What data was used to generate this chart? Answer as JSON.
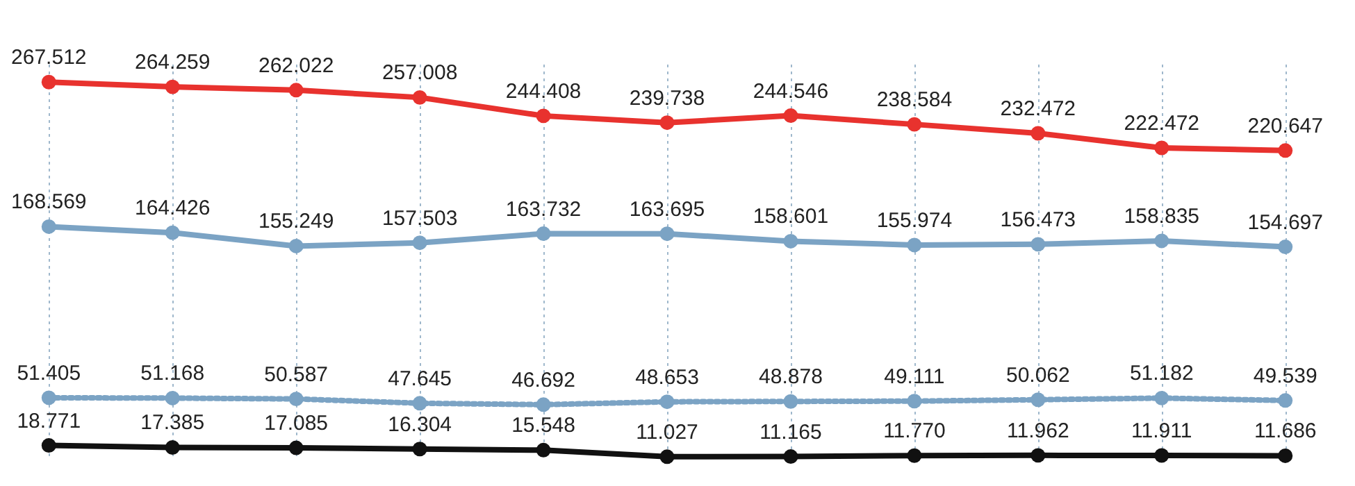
{
  "chart_data": {
    "type": "line",
    "categories": [
      null,
      null,
      null,
      null,
      null,
      null,
      null,
      null,
      null,
      null,
      null
    ],
    "series": [
      {
        "color": "#e8322e",
        "values": [
          267.512,
          264.259,
          262.022,
          257.008,
          244.408,
          239.738,
          244.546,
          238.584,
          232.472,
          222.472,
          220.647
        ],
        "value_labels": [
          "267.512",
          "264.259",
          "262.022",
          "257.008",
          "244.408",
          "239.738",
          "244.546",
          "238.584",
          "232.472",
          "222.472",
          "220.647"
        ]
      },
      {
        "color": "#7ba3c4",
        "values": [
          168.569,
          164.426,
          155.249,
          157.503,
          163.732,
          163.695,
          158.601,
          155.974,
          156.473,
          158.835,
          154.697
        ],
        "value_labels": [
          "168.569",
          "164.426",
          "155.249",
          "157.503",
          "163.732",
          "163.695",
          "158.601",
          "155.974",
          "156.473",
          "158.835",
          "154.697"
        ]
      },
      {
        "color": "#7ba3c4",
        "line_style": "dotted",
        "values": [
          51.405,
          51.168,
          50.587,
          47.645,
          46.692,
          48.653,
          48.878,
          49.111,
          50.062,
          51.182,
          49.539
        ],
        "value_labels": [
          "51.405",
          "51.168",
          "50.587",
          "47.645",
          "46.692",
          "48.653",
          "48.878",
          "49.111",
          "50.062",
          "51.182",
          "49.539"
        ]
      },
      {
        "color": "#111111",
        "values": [
          18.771,
          17.385,
          17.085,
          16.304,
          15.548,
          11.027,
          11.165,
          11.77,
          11.962,
          11.911,
          11.686
        ],
        "value_labels": [
          "18.771",
          "17.385",
          "17.085",
          "16.304",
          "15.548",
          "11.027",
          "11.165",
          "11.770",
          "11.962",
          "11.911",
          "11.686"
        ]
      }
    ],
    "ylim": [
      10,
      280
    ],
    "grid": "x",
    "tick_labels": false,
    "marker": "circle",
    "line_style": "solid"
  }
}
